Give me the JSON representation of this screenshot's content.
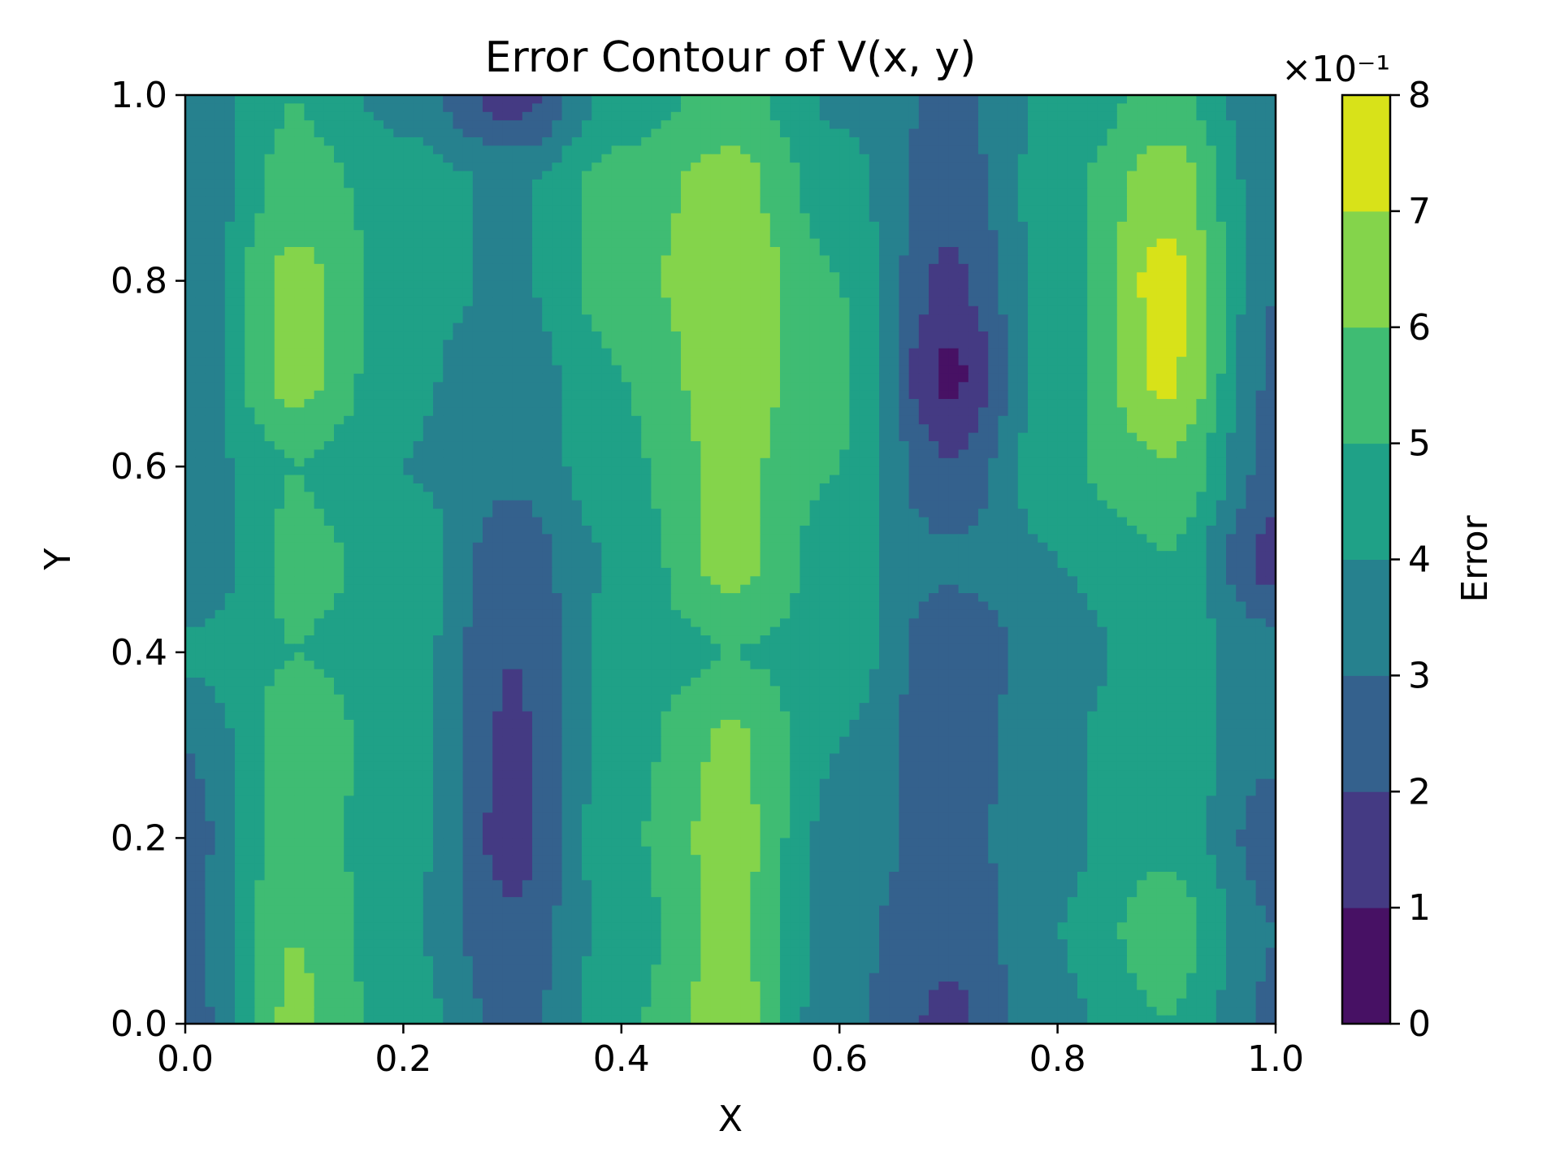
{
  "chart_data": {
    "type": "heatmap",
    "style": "filled-contour",
    "title": "Error Contour of V(x, y)",
    "xlabel": "X",
    "ylabel": "Y",
    "xlim": [
      0.0,
      1.0
    ],
    "ylim": [
      0.0,
      1.0
    ],
    "x_ticks": [
      "0.0",
      "0.2",
      "0.4",
      "0.6",
      "0.8",
      "1.0"
    ],
    "y_ticks": [
      "0.0",
      "0.2",
      "0.4",
      "0.6",
      "0.8",
      "1.0"
    ],
    "colorbar": {
      "label": "Error",
      "scale_label": "×10⁻¹",
      "ticks": [
        "0",
        "1",
        "2",
        "3",
        "4",
        "5",
        "6",
        "7",
        "8"
      ],
      "levels": [
        0,
        1,
        2,
        3,
        4,
        5,
        6,
        7,
        8
      ],
      "colors": [
        "#471164",
        "#443a83",
        "#34618d",
        "#26818e",
        "#1fa187",
        "#3fbc73",
        "#84d44b",
        "#d8e219"
      ]
    },
    "grid": false,
    "x": [
      0.0,
      0.1,
      0.2,
      0.3,
      0.4,
      0.5,
      0.6,
      0.7,
      0.8,
      0.9,
      1.0
    ],
    "y": [
      0.0,
      0.1,
      0.2,
      0.3,
      0.4,
      0.5,
      0.6,
      0.7,
      0.8,
      0.9,
      1.0
    ],
    "z_rows_bottom_to_top": [
      [
        2.5,
        6.2,
        4.5,
        2.6,
        4.8,
        6.5,
        3.2,
        1.8,
        3.8,
        5.0,
        2.8
      ],
      [
        2.8,
        6.0,
        4.2,
        2.2,
        4.5,
        6.3,
        3.4,
        2.2,
        4.0,
        5.6,
        3.0
      ],
      [
        2.6,
        5.5,
        4.4,
        1.6,
        4.8,
        6.4,
        3.6,
        2.6,
        3.8,
        4.8,
        2.4
      ],
      [
        3.0,
        5.6,
        4.5,
        1.8,
        4.6,
        6.2,
        4.0,
        2.3,
        3.9,
        4.6,
        3.2
      ],
      [
        4.2,
        5.0,
        4.6,
        2.0,
        4.4,
        5.0,
        4.6,
        2.2,
        3.6,
        4.5,
        3.4
      ],
      [
        3.0,
        5.2,
        4.8,
        2.4,
        4.2,
        6.4,
        4.4,
        3.2,
        4.0,
        5.0,
        1.6
      ],
      [
        3.4,
        5.0,
        4.0,
        3.2,
        4.8,
        6.3,
        5.0,
        2.0,
        4.8,
        6.0,
        2.6
      ],
      [
        3.2,
        6.4,
        4.2,
        3.4,
        5.0,
        6.6,
        5.2,
        0.8,
        4.6,
        7.2,
        2.8
      ],
      [
        3.2,
        6.3,
        4.5,
        3.8,
        5.6,
        6.8,
        5.0,
        1.8,
        4.5,
        7.4,
        3.0
      ],
      [
        3.0,
        5.4,
        4.6,
        3.8,
        5.5,
        6.4,
        4.4,
        2.4,
        4.6,
        6.6,
        3.2
      ],
      [
        3.0,
        5.0,
        3.6,
        1.6,
        4.4,
        5.4,
        3.8,
        2.8,
        4.2,
        5.4,
        3.0
      ]
    ]
  }
}
